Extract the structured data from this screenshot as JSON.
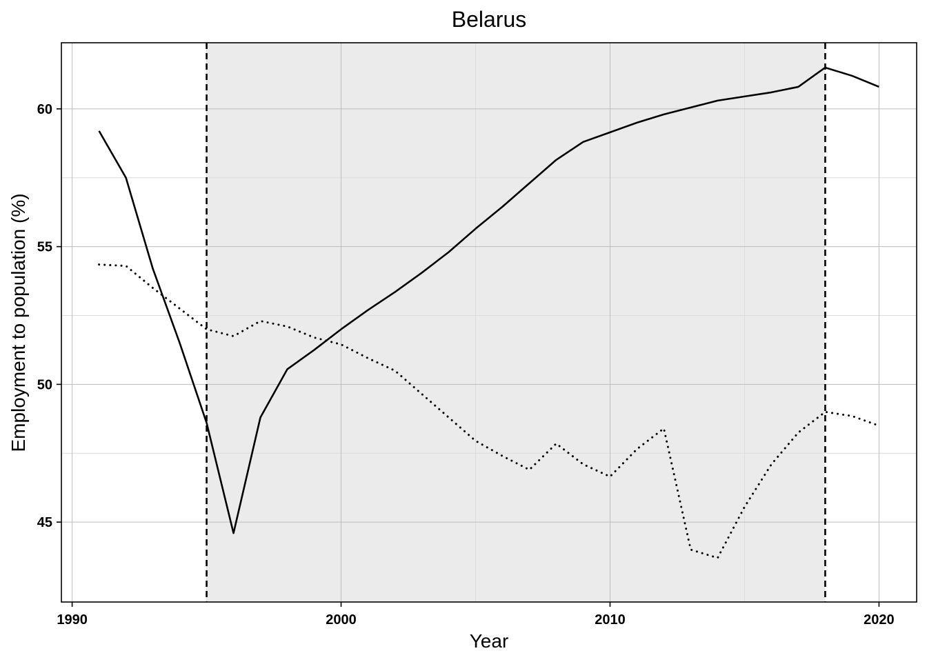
{
  "chart_data": {
    "type": "line",
    "title": "Belarus",
    "xlabel": "Year",
    "ylabel": "Employment to population (%)",
    "xlim": [
      1989.6,
      2021.4
    ],
    "ylim": [
      42.1,
      62.4
    ],
    "x_ticks": [
      1990,
      2000,
      2010,
      2020
    ],
    "y_ticks": [
      45,
      50,
      55,
      60
    ],
    "x_minor_grid": [
      1995,
      2005,
      2015
    ],
    "y_minor_grid": [
      47.5,
      52.5,
      57.5
    ],
    "grid": true,
    "legend": "none",
    "shaded_region": [
      1995,
      2018
    ],
    "vertical_lines": [
      1995,
      2018
    ],
    "colors": {
      "shade": "#ebebeb",
      "line": "#000000",
      "grid_major": "#bdbdbd",
      "grid_minor": "#dcdcdc"
    },
    "series": [
      {
        "style": "solid",
        "x": [
          1991,
          1992,
          1993,
          1994,
          1995,
          1996,
          1997,
          1998,
          1999,
          2000,
          2001,
          2002,
          2003,
          2004,
          2005,
          2006,
          2007,
          2008,
          2009,
          2010,
          2011,
          2012,
          2013,
          2014,
          2015,
          2016,
          2017,
          2018,
          2019,
          2020
        ],
        "y": [
          59.2,
          57.5,
          54.2,
          51.5,
          48.6,
          44.6,
          48.8,
          50.55,
          51.25,
          52.0,
          52.7,
          53.35,
          54.05,
          54.8,
          55.65,
          56.45,
          57.3,
          58.15,
          58.8,
          59.15,
          59.5,
          59.8,
          60.05,
          60.3,
          60.45,
          60.6,
          60.8,
          61.5,
          61.2,
          60.8
        ]
      },
      {
        "style": "dotted",
        "x": [
          1991,
          1992,
          1993,
          1994,
          1995,
          1996,
          1997,
          1998,
          1999,
          2000,
          2001,
          2002,
          2003,
          2004,
          2005,
          2006,
          2007,
          2008,
          2009,
          2010,
          2011,
          2012,
          2013,
          2014,
          2015,
          2016,
          2017,
          2018,
          2019,
          2020
        ],
        "y": [
          54.35,
          54.3,
          53.5,
          52.75,
          52.0,
          51.75,
          52.3,
          52.1,
          51.7,
          51.45,
          50.95,
          50.5,
          49.65,
          48.8,
          47.95,
          47.4,
          46.9,
          47.85,
          47.1,
          46.65,
          47.65,
          48.4,
          44.0,
          43.7,
          45.55,
          47.1,
          48.25,
          49.0,
          48.85,
          48.5
        ]
      }
    ]
  }
}
